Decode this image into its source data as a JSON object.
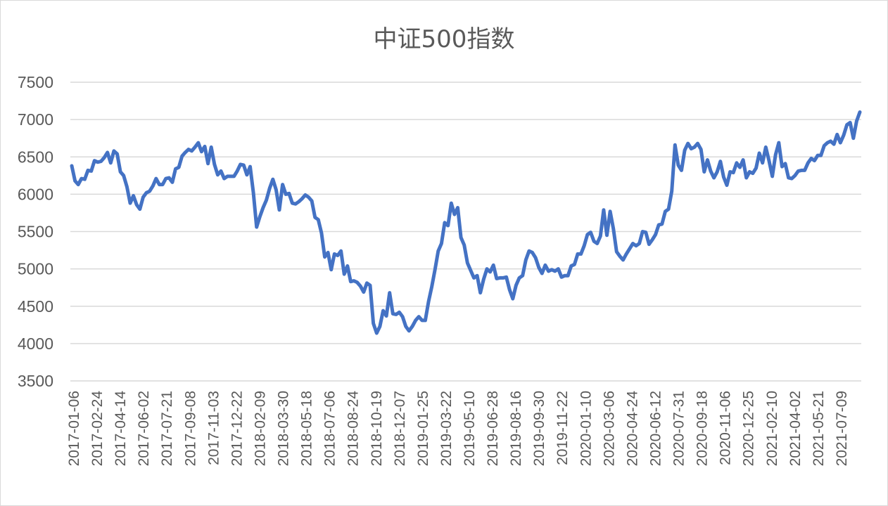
{
  "chart_data": {
    "type": "line",
    "title": "中证500指数",
    "xlabel": "",
    "ylabel": "",
    "ylim": [
      3500,
      7500
    ],
    "yticks": [
      3500,
      4000,
      4500,
      5000,
      5500,
      6000,
      6500,
      7000,
      7500
    ],
    "ytick_labels": [
      "3500",
      "4000",
      "4500",
      "5000",
      "5500",
      "6000",
      "6500",
      "7000",
      "7500"
    ],
    "xtick_labels": [
      "2017-01-06",
      "2017-02-24",
      "2017-04-14",
      "2017-06-02",
      "2017-07-21",
      "2017-09-08",
      "2017-11-03",
      "2017-12-22",
      "2018-02-09",
      "2018-03-30",
      "2018-05-18",
      "2018-07-06",
      "2018-08-24",
      "2018-10-19",
      "2018-12-07",
      "2019-01-25",
      "2019-03-22",
      "2019-05-10",
      "2019-06-28",
      "2019-08-16",
      "2019-09-30",
      "2019-11-22",
      "2020-01-10",
      "2020-03-06",
      "2020-04-24",
      "2020-06-12",
      "2020-07-31",
      "2020-09-18",
      "2020-11-06",
      "2020-12-25",
      "2021-02-10",
      "2021-04-02",
      "2021-05-21",
      "2021-07-09"
    ],
    "grid": true,
    "legend": "none",
    "line_color": "#4472c4",
    "series": [
      {
        "name": "",
        "values": [
          6380,
          6180,
          6130,
          6210,
          6200,
          6320,
          6310,
          6450,
          6430,
          6440,
          6490,
          6560,
          6420,
          6580,
          6540,
          6300,
          6250,
          6100,
          5880,
          5980,
          5860,
          5800,
          5960,
          6020,
          6040,
          6110,
          6210,
          6130,
          6130,
          6210,
          6220,
          6160,
          6340,
          6360,
          6510,
          6560,
          6600,
          6580,
          6630,
          6690,
          6570,
          6640,
          6410,
          6630,
          6400,
          6260,
          6310,
          6210,
          6240,
          6240,
          6240,
          6310,
          6400,
          6390,
          6260,
          6370,
          6020,
          5560,
          5700,
          5820,
          5920,
          6080,
          6200,
          6060,
          5790,
          6130,
          6000,
          6010,
          5880,
          5870,
          5900,
          5940,
          5990,
          5960,
          5910,
          5690,
          5660,
          5480,
          5160,
          5220,
          4990,
          5200,
          5180,
          5240,
          4930,
          5040,
          4830,
          4840,
          4820,
          4770,
          4690,
          4810,
          4780,
          4270,
          4140,
          4230,
          4440,
          4370,
          4680,
          4400,
          4390,
          4420,
          4360,
          4230,
          4170,
          4230,
          4310,
          4360,
          4310,
          4310,
          4560,
          4760,
          4990,
          5240,
          5340,
          5620,
          5580,
          5880,
          5730,
          5820,
          5420,
          5320,
          5080,
          4980,
          4880,
          4910,
          4680,
          4860,
          5000,
          4960,
          5050,
          4870,
          4880,
          4880,
          4890,
          4720,
          4600,
          4780,
          4880,
          4910,
          5120,
          5240,
          5220,
          5150,
          5020,
          4940,
          5050,
          4970,
          4990,
          4970,
          5000,
          4890,
          4910,
          4910,
          5040,
          5060,
          5200,
          5200,
          5310,
          5460,
          5490,
          5370,
          5340,
          5440,
          5790,
          5450,
          5770,
          5540,
          5230,
          5170,
          5120,
          5200,
          5270,
          5340,
          5310,
          5340,
          5500,
          5490,
          5330,
          5390,
          5460,
          5590,
          5600,
          5770,
          5800,
          6040,
          6660,
          6390,
          6320,
          6590,
          6680,
          6610,
          6630,
          6680,
          6600,
          6300,
          6460,
          6310,
          6220,
          6300,
          6440,
          6230,
          6120,
          6300,
          6290,
          6420,
          6360,
          6460,
          6220,
          6300,
          6280,
          6350,
          6550,
          6420,
          6630,
          6450,
          6240,
          6530,
          6690,
          6370,
          6410,
          6220,
          6210,
          6250,
          6310,
          6320,
          6320,
          6420,
          6480,
          6450,
          6520,
          6520,
          6650,
          6690,
          6710,
          6670,
          6800,
          6690,
          6790,
          6930,
          6960,
          6750,
          6980,
          7100
        ]
      }
    ]
  }
}
